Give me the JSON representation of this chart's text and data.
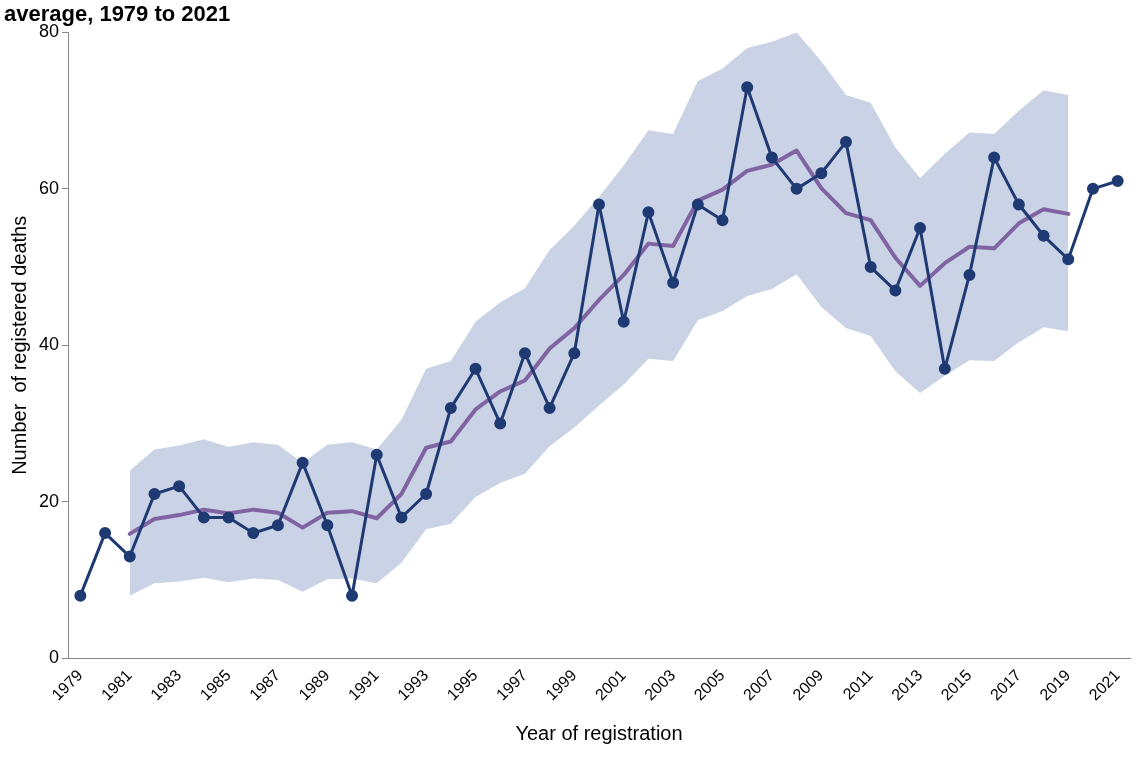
{
  "chart_data": {
    "type": "line",
    "title": "average, 1979 to 2021",
    "xlabel": "Year of registration",
    "ylabel": "Number  of registered deaths",
    "categories": [
      "1979",
      null,
      "1981",
      null,
      "1983",
      null,
      "1985",
      null,
      "1987",
      null,
      "1989",
      null,
      "1991",
      null,
      "1993",
      null,
      "1995",
      null,
      "1997",
      null,
      "1999",
      null,
      "2001",
      null,
      "2003",
      null,
      "2005",
      null,
      "2007",
      null,
      "2009",
      null,
      "2011",
      null,
      "2013",
      null,
      "2015",
      null,
      "2017",
      null,
      "2019",
      null,
      "2021"
    ],
    "series": [
      {
        "type": "line",
        "color": "#8064a2",
        "marker": "none",
        "values": [
          null,
          null,
          15.9,
          17.8,
          18.3,
          19.0,
          18.5,
          19.0,
          18.6,
          16.7,
          18.6,
          18.8,
          17.9,
          21.0,
          26.9,
          27.7,
          31.8,
          34.1,
          35.5,
          39.6,
          42.2,
          45.8,
          49.0,
          53.0,
          52.7,
          58.5,
          59.9,
          62.3,
          63.1,
          64.9,
          60.1,
          56.9,
          56.0,
          51.2,
          47.6,
          50.5,
          52.6,
          52.4,
          55.6,
          57.4,
          56.8,
          null,
          null
        ],
        "lower": [
          null,
          null,
          8,
          9.6,
          9.8,
          10.3,
          9.7,
          10.2,
          10,
          8.5,
          10.1,
          10.2,
          9.6,
          12.2,
          16.5,
          17.2,
          20.6,
          22.4,
          23.6,
          27.1,
          29.5,
          32.3,
          35,
          38.3,
          38,
          43.2,
          44.4,
          46.3,
          47.2,
          49.1,
          44.9,
          42.2,
          41.2,
          36.7,
          33.9,
          36.1,
          38.1,
          38,
          40.4,
          42.3,
          41.8,
          null,
          null
        ],
        "upper": [
          null,
          null,
          24,
          26.7,
          27.2,
          28,
          27,
          27.6,
          27.3,
          25,
          27.3,
          27.6,
          26.7,
          30.5,
          37,
          38,
          43,
          45.5,
          47.3,
          52.2,
          55.3,
          59,
          63,
          67.5,
          67,
          73.8,
          75.4,
          78,
          78.8,
          80,
          76.3,
          72,
          71,
          65.3,
          61.4,
          64.5,
          67.2,
          67,
          70,
          72.6,
          72,
          null,
          null
        ]
      },
      {
        "type": "line",
        "color": "#1f3a73",
        "marker": "circle",
        "values": [
          8,
          16,
          13,
          21,
          22,
          18,
          18,
          16,
          17,
          25,
          17,
          8,
          26,
          18,
          21,
          32,
          37,
          30,
          39,
          32,
          39,
          58,
          43,
          57,
          48,
          58,
          56,
          73,
          64,
          60,
          62,
          66,
          50,
          47,
          55,
          37,
          49,
          64,
          58,
          54,
          51,
          60,
          61
        ]
      }
    ],
    "ylim": [
      0,
      80
    ],
    "yticks": [
      0,
      20,
      40,
      60,
      80
    ],
    "grid": false
  }
}
